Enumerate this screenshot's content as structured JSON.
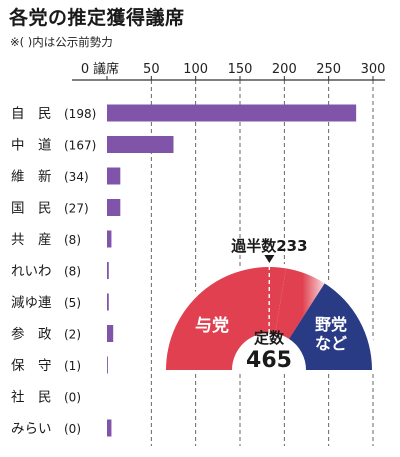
{
  "header": {
    "title": "各党の推定獲得議席",
    "note": "※( )内は公示前勢力"
  },
  "chart_data": {
    "type": "bar",
    "orientation": "horizontal",
    "title": "各党の推定獲得議席",
    "axis_unit_label": "議席",
    "xlim": [
      0,
      300
    ],
    "ticks": [
      0,
      50,
      100,
      150,
      200,
      250,
      300
    ],
    "grid": true,
    "categories": [
      "自　民",
      "中　道",
      "維　新",
      "国　民",
      "共　産",
      "れいわ",
      "減ゆ連",
      "参　政",
      "保　守",
      "社　民",
      "みらい"
    ],
    "pre_election_seats": [
      198,
      167,
      34,
      27,
      8,
      8,
      5,
      2,
      1,
      0,
      0
    ],
    "values": [
      281,
      75,
      15,
      15,
      5,
      2,
      2,
      7,
      1,
      0,
      5
    ],
    "colors": {
      "bar": "#7f54a9",
      "grid": "#555555"
    }
  },
  "seat_gauge": {
    "type": "semicircle",
    "majority_label": "過半数233",
    "total_label": "定数",
    "total_value": "465",
    "majority_value": 233,
    "total": 465,
    "ruling_label": "与党",
    "opposition_label": "野党\nなど",
    "ruling_seats": 297,
    "colors": {
      "ruling": "#e0404f",
      "opposition": "#2a3b86",
      "boundary": "#f2c0c6"
    }
  }
}
